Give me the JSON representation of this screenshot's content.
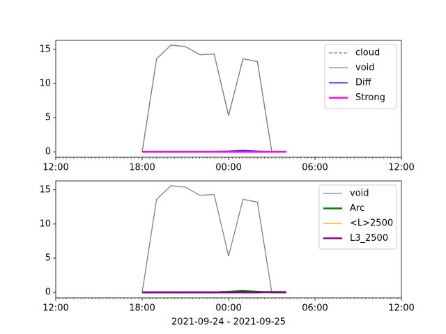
{
  "chart_data": [
    {
      "type": "line",
      "x": [
        18,
        19,
        20,
        21,
        22,
        23,
        24,
        25,
        26,
        27,
        28
      ],
      "series": [
        {
          "name": "cloud",
          "color": "#808080",
          "dash": "dashed",
          "width": 1,
          "values": [
            0,
            13.6,
            15.6,
            15.4,
            14.2,
            14.3,
            5.3,
            13.6,
            13.2,
            0,
            0
          ]
        },
        {
          "name": "void",
          "color": "#808080",
          "dash": "solid",
          "width": 1,
          "values": [
            0,
            13.6,
            15.6,
            15.4,
            14.2,
            14.3,
            5.3,
            13.6,
            13.2,
            0,
            0
          ]
        },
        {
          "name": "Diff",
          "color": "#0000ff",
          "dash": "solid",
          "width": 1,
          "values": [
            0,
            0,
            0.05,
            0.05,
            0.05,
            0.05,
            0.1,
            0.2,
            0.1,
            0,
            0
          ]
        },
        {
          "name": "Strong",
          "color": "#ff00ff",
          "dash": "solid",
          "width": 2,
          "values": [
            0,
            0,
            0,
            0,
            0,
            0,
            0,
            0,
            0,
            0,
            0
          ]
        }
      ],
      "xlim": [
        12,
        36
      ],
      "xticks": [
        {
          "value": 12,
          "label": "12:00"
        },
        {
          "value": 18,
          "label": "18:00"
        },
        {
          "value": 24,
          "label": "00:00"
        },
        {
          "value": 30,
          "label": "06:00"
        },
        {
          "value": 36,
          "label": "12:00"
        }
      ],
      "ylim": [
        -0.8,
        16.3
      ],
      "yticks": [
        0,
        5,
        10,
        15
      ],
      "legend": "upper right"
    },
    {
      "type": "line",
      "x": [
        18,
        19,
        20,
        21,
        22,
        23,
        24,
        25,
        26,
        27,
        28
      ],
      "series": [
        {
          "name": "void",
          "color": "#808080",
          "dash": "solid",
          "width": 1,
          "values": [
            0,
            13.6,
            15.6,
            15.4,
            14.2,
            14.3,
            5.3,
            13.6,
            13.2,
            0,
            0
          ]
        },
        {
          "name": "Arc",
          "color": "#008000",
          "dash": "solid",
          "width": 2,
          "values": [
            0,
            0,
            0,
            0,
            0,
            0,
            0.1,
            0.2,
            0.1,
            0,
            0
          ]
        },
        {
          "name": "<L>2500",
          "color": "#ffa500",
          "dash": "solid",
          "width": 1,
          "values": [
            0,
            0,
            0,
            0,
            0,
            0,
            0,
            0,
            0,
            0,
            0
          ]
        },
        {
          "name": "L3_2500",
          "color": "#800080",
          "dash": "solid",
          "width": 2,
          "values": [
            0,
            0,
            0,
            0,
            0,
            0,
            0,
            0,
            0,
            0.05,
            0.05
          ]
        }
      ],
      "xlim": [
        12,
        36
      ],
      "xticks": [
        {
          "value": 12,
          "label": "12:00"
        },
        {
          "value": 18,
          "label": "18:00"
        },
        {
          "value": 24,
          "label": "00:00"
        },
        {
          "value": 30,
          "label": "06:00"
        },
        {
          "value": 36,
          "label": "12:00"
        }
      ],
      "ylim": [
        -0.8,
        16.3
      ],
      "yticks": [
        0,
        5,
        10,
        15
      ],
      "xlabel": "2021-09-24 - 2021-09-25",
      "legend": "upper right"
    }
  ]
}
